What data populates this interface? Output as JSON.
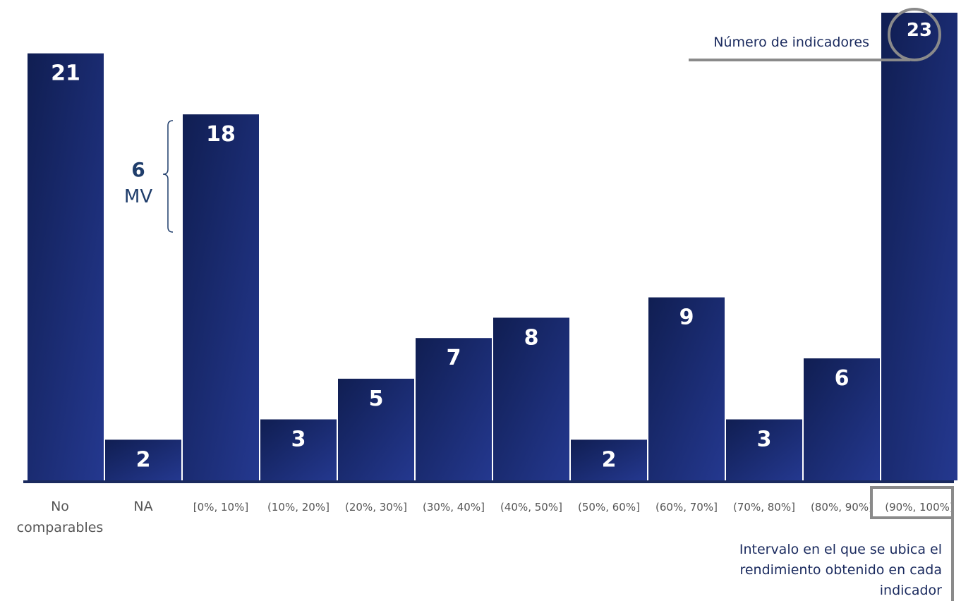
{
  "chart_data": {
    "type": "bar",
    "categories": [
      "No\ncomparables",
      "NA",
      "[0%, 10%]",
      "(10%, 20%]",
      "(20%, 30%]",
      "(30%, 40%]",
      "(40%, 50%]",
      "(50%, 60%]",
      "(60%, 70%]",
      "(70%, 80%]",
      "(80%, 90%]",
      "(90%, 100%]"
    ],
    "values": [
      21,
      2,
      18,
      3,
      5,
      7,
      8,
      2,
      9,
      3,
      6,
      23
    ],
    "ylim": [
      0,
      23
    ],
    "grid": false,
    "colors": {
      "bar_dark": "#101e52",
      "bar_light": "#24388f",
      "axis": "#1a2a5e",
      "callout": "#8a8a8a"
    },
    "annotations": {
      "mv": {
        "value": "6",
        "label": "MV",
        "category": "[0%, 10%]"
      },
      "count_callout": "Número de indicadores",
      "interval_callout": [
        "Intervalo en el que se ubica el",
        "rendimiento obtenido en cada",
        "indicador"
      ]
    }
  }
}
